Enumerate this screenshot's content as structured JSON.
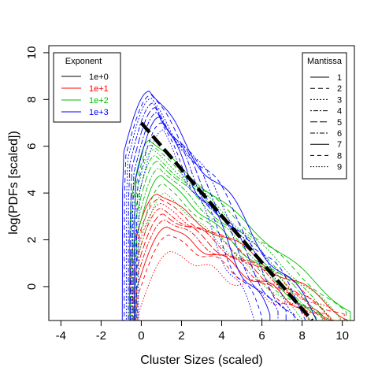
{
  "chart_data": {
    "type": "line",
    "title": "",
    "xlabel": "Cluster Sizes (scaled)",
    "ylabel": "log(PDFs [scaled])",
    "xlim": [
      -4.6,
      10.6
    ],
    "ylim": [
      -1.45,
      10.3
    ],
    "xticks": [
      -4,
      -2,
      0,
      2,
      4,
      6,
      8,
      10
    ],
    "yticks": [
      0,
      2,
      4,
      6,
      8,
      10
    ],
    "legend_exponent": {
      "title": "Exponent",
      "position": "top-left",
      "entries": [
        {
          "label": "1e+0",
          "color": "#000000"
        },
        {
          "label": "1e+1",
          "color": "#ff0000"
        },
        {
          "label": "1e+2",
          "color": "#00bb00"
        },
        {
          "label": "1e+3",
          "color": "#0000ff"
        }
      ]
    },
    "legend_mantissa": {
      "title": "Mantissa",
      "position": "top-right",
      "entries": [
        {
          "label": "1",
          "dash": "none"
        },
        {
          "label": "2",
          "dash": "6,4"
        },
        {
          "label": "3",
          "dash": "2,2"
        },
        {
          "label": "4",
          "dash": "2,2,6,2"
        },
        {
          "label": "5",
          "dash": "9,3"
        },
        {
          "label": "6",
          "dash": "6,2,2,2"
        },
        {
          "label": "7",
          "dash": "none"
        },
        {
          "label": "8",
          "dash": "5,4"
        },
        {
          "label": "9",
          "dash": "1.5,2"
        }
      ]
    },
    "reference_line": {
      "color": "#000000",
      "points": [
        [
          0,
          7.0
        ],
        [
          8.5,
          -1.45
        ]
      ]
    },
    "series": [
      {
        "exponent": "1e+1",
        "color": "#ff0000",
        "peaks": [
          {
            "x0": -0.6,
            "px": 0.8,
            "py": 3.95,
            "xe": 10.3,
            "ye": -1.3
          },
          {
            "x0": -0.55,
            "px": 0.9,
            "py": 3.75,
            "xe": 10.1,
            "ye": -1.35
          },
          {
            "x0": -0.5,
            "px": 1.0,
            "py": 3.55,
            "xe": 9.9,
            "ye": -1.4
          },
          {
            "x0": -0.45,
            "px": 1.0,
            "py": 3.35,
            "xe": 9.7,
            "ye": -1.4
          },
          {
            "x0": -0.4,
            "px": 1.1,
            "py": 3.1,
            "xe": 9.5,
            "ye": -1.4
          },
          {
            "x0": -0.35,
            "px": 1.2,
            "py": 2.85,
            "xe": 9.3,
            "ye": -1.4
          },
          {
            "x0": -0.3,
            "px": 1.3,
            "py": 2.55,
            "xe": 9.1,
            "ye": -1.4
          },
          {
            "x0": -0.25,
            "px": 1.4,
            "py": 2.2,
            "xe": 8.9,
            "ye": -1.4
          },
          {
            "x0": -0.2,
            "px": 1.5,
            "py": 1.5,
            "xe": 8.7,
            "ye": -1.4
          }
        ]
      },
      {
        "exponent": "1e+2",
        "color": "#00bb00",
        "peaks": [
          {
            "x0": -0.6,
            "px": 0.4,
            "py": 6.25,
            "xe": 10.4,
            "ye": -1.1
          },
          {
            "x0": -0.55,
            "px": 0.5,
            "py": 6.05,
            "xe": 10.2,
            "ye": -1.2
          },
          {
            "x0": -0.5,
            "px": 0.6,
            "py": 5.85,
            "xe": 9.9,
            "ye": -1.3
          },
          {
            "x0": -0.45,
            "px": 0.7,
            "py": 5.6,
            "xe": 9.6,
            "ye": -1.35
          },
          {
            "x0": -0.4,
            "px": 0.8,
            "py": 5.35,
            "xe": 9.3,
            "ye": -1.4
          },
          {
            "x0": -0.35,
            "px": 0.9,
            "py": 5.05,
            "xe": 9.0,
            "ye": -1.4
          },
          {
            "x0": -0.3,
            "px": 1.0,
            "py": 4.75,
            "xe": 8.7,
            "ye": -1.4
          },
          {
            "x0": -0.25,
            "px": 1.1,
            "py": 4.4,
            "xe": 8.4,
            "ye": -1.4
          },
          {
            "x0": -0.2,
            "px": 1.2,
            "py": 4.0,
            "xe": 8.1,
            "ye": -1.4
          }
        ]
      },
      {
        "exponent": "1e+3",
        "color": "#0000ff",
        "peaks": [
          {
            "x0": -0.95,
            "px": 0.4,
            "py": 8.35,
            "xe": 8.7,
            "ye": -1.4
          },
          {
            "x0": -0.85,
            "px": 0.5,
            "py": 8.2,
            "xe": 8.4,
            "ye": -1.4
          },
          {
            "x0": -0.75,
            "px": 0.5,
            "py": 8.05,
            "xe": 8.0,
            "ye": -1.4
          },
          {
            "x0": -0.65,
            "px": 0.6,
            "py": 7.85,
            "xe": 7.6,
            "ye": -1.4
          },
          {
            "x0": -0.55,
            "px": 0.7,
            "py": 7.65,
            "xe": 7.2,
            "ye": -1.4
          },
          {
            "x0": -0.45,
            "px": 0.8,
            "py": 7.45,
            "xe": 6.8,
            "ye": -1.4
          },
          {
            "x0": -0.35,
            "px": 0.9,
            "py": 7.25,
            "xe": 6.4,
            "ye": -1.4
          },
          {
            "x0": -0.25,
            "px": 1.0,
            "py": 7.0,
            "xe": 6.0,
            "ye": -1.4
          },
          {
            "x0": -0.15,
            "px": 1.1,
            "py": 6.7,
            "xe": 5.6,
            "ye": -1.4
          }
        ]
      }
    ],
    "grid": false
  }
}
